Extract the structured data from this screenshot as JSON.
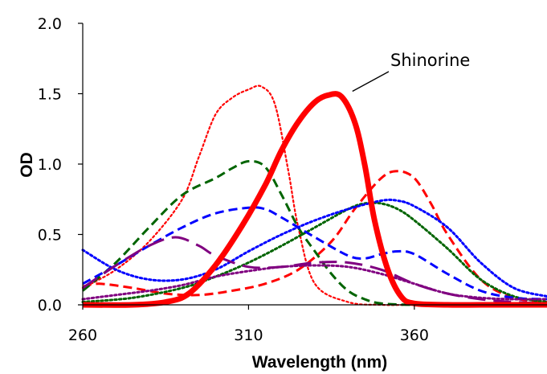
{
  "chart_data": {
    "type": "line",
    "xlabel": "Wavelength (nm)",
    "ylabel": "OD",
    "xlim": [
      260,
      400
    ],
    "ylim": [
      0,
      2
    ],
    "xticks": [
      260,
      310,
      360
    ],
    "yticks": [
      "0.0",
      "0.5",
      "1.0",
      "1.5",
      "2.0"
    ],
    "grid": false,
    "annotation": {
      "text": "Shinorine",
      "x": 336,
      "y": 1.5
    },
    "series": [
      {
        "name": "Shinorine",
        "color": "#ff0000",
        "style": "solid",
        "width": "thick",
        "x": [
          260,
          275,
          285,
          292,
          300,
          308,
          315,
          320,
          325,
          330,
          334,
          338,
          342,
          345,
          348,
          352,
          356,
          360,
          370,
          380,
          390,
          400
        ],
        "y": [
          0.0,
          0.0,
          0.02,
          0.08,
          0.28,
          0.56,
          0.85,
          1.1,
          1.3,
          1.44,
          1.49,
          1.48,
          1.3,
          1.0,
          0.6,
          0.25,
          0.06,
          0.01,
          0.0,
          0.0,
          0.0,
          0.0
        ]
      },
      {
        "color": "#ff0000",
        "style": "dotted",
        "width": "thin",
        "x": [
          260,
          270,
          280,
          290,
          295,
          300,
          305,
          310,
          314,
          318,
          322,
          325,
          330,
          340,
          350,
          360,
          380,
          400
        ],
        "y": [
          0.12,
          0.25,
          0.45,
          0.75,
          1.05,
          1.35,
          1.47,
          1.53,
          1.55,
          1.42,
          0.95,
          0.55,
          0.15,
          0.02,
          0.0,
          0.0,
          0.0,
          0.0
        ]
      },
      {
        "color": "#ff0000",
        "style": "dashed",
        "width": "medium",
        "x": [
          260,
          265,
          275,
          285,
          295,
          305,
          315,
          325,
          335,
          342,
          350,
          355,
          360,
          365,
          370,
          380,
          390,
          400
        ],
        "y": [
          0.13,
          0.15,
          0.12,
          0.08,
          0.07,
          0.1,
          0.15,
          0.25,
          0.45,
          0.68,
          0.9,
          0.95,
          0.9,
          0.72,
          0.5,
          0.18,
          0.05,
          0.02
        ]
      },
      {
        "color": "#006400",
        "style": "dashed",
        "width": "medium",
        "x": [
          260,
          270,
          280,
          290,
          300,
          305,
          310,
          315,
          320,
          325,
          330,
          335,
          340,
          345,
          350,
          360,
          380,
          400
        ],
        "y": [
          0.1,
          0.3,
          0.55,
          0.78,
          0.9,
          0.97,
          1.02,
          0.98,
          0.78,
          0.55,
          0.38,
          0.22,
          0.1,
          0.04,
          0.01,
          0.0,
          0.0,
          0.0
        ]
      },
      {
        "color": "#006400",
        "style": "dotted",
        "width": "medium",
        "x": [
          260,
          275,
          290,
          300,
          310,
          320,
          330,
          340,
          345,
          350,
          355,
          360,
          370,
          380,
          390,
          400
        ],
        "y": [
          0.02,
          0.05,
          0.12,
          0.2,
          0.3,
          0.42,
          0.55,
          0.68,
          0.72,
          0.72,
          0.68,
          0.6,
          0.4,
          0.18,
          0.06,
          0.02
        ]
      },
      {
        "color": "#0000ff",
        "style": "dashed",
        "width": "medium",
        "x": [
          260,
          270,
          280,
          290,
          300,
          310,
          315,
          320,
          330,
          340,
          345,
          350,
          355,
          360,
          370,
          380,
          390,
          400
        ],
        "y": [
          0.15,
          0.28,
          0.42,
          0.55,
          0.65,
          0.69,
          0.68,
          0.62,
          0.48,
          0.35,
          0.33,
          0.36,
          0.38,
          0.36,
          0.22,
          0.1,
          0.05,
          0.04
        ]
      },
      {
        "color": "#0000ff",
        "style": "dotted",
        "width": "medium",
        "x": [
          260,
          270,
          280,
          290,
          300,
          310,
          320,
          330,
          340,
          350,
          355,
          360,
          370,
          380,
          390,
          400
        ],
        "y": [
          0.39,
          0.25,
          0.18,
          0.18,
          0.25,
          0.38,
          0.5,
          0.6,
          0.68,
          0.74,
          0.74,
          0.7,
          0.55,
          0.3,
          0.12,
          0.06
        ]
      },
      {
        "color": "#800080",
        "style": "long-dash",
        "width": "medium",
        "x": [
          260,
          270,
          280,
          288,
          295,
          300,
          310,
          320,
          330,
          340,
          350,
          360,
          370,
          380,
          390,
          400
        ],
        "y": [
          0.12,
          0.28,
          0.42,
          0.48,
          0.42,
          0.35,
          0.27,
          0.27,
          0.3,
          0.3,
          0.25,
          0.15,
          0.08,
          0.04,
          0.02,
          0.01
        ]
      },
      {
        "color": "#800080",
        "style": "dotted",
        "width": "medium",
        "x": [
          260,
          270,
          280,
          290,
          300,
          310,
          320,
          330,
          340,
          350,
          360,
          370,
          380,
          390,
          400
        ],
        "y": [
          0.04,
          0.07,
          0.1,
          0.14,
          0.2,
          0.24,
          0.27,
          0.28,
          0.27,
          0.22,
          0.15,
          0.08,
          0.05,
          0.04,
          0.04
        ]
      }
    ]
  }
}
